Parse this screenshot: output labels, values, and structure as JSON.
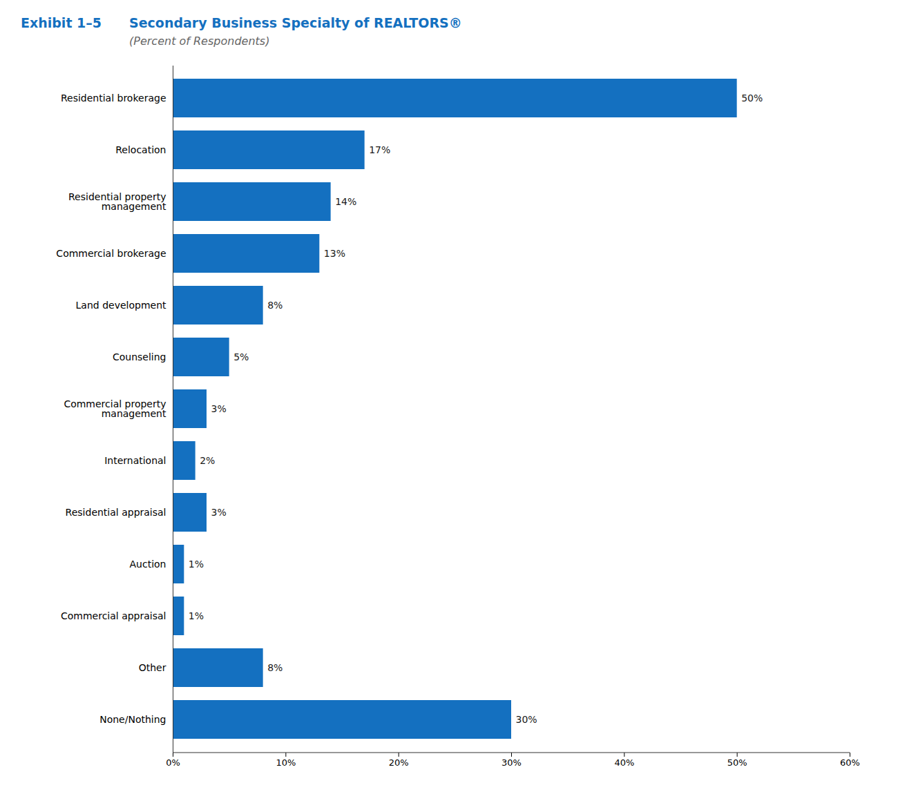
{
  "chart_data": {
    "type": "bar",
    "orientation": "horizontal",
    "title": "Secondary Business Specialty of REALTORS®",
    "subtitle": "(Percent of Respondents)",
    "annotations": [
      "Exhibit 1–5"
    ],
    "categories": [
      "Residential brokerage",
      "Relocation",
      "Residential property\nmanagement",
      "Commercial brokerage",
      "Land development",
      "Counseling",
      "Commercial property\nmanagement",
      "International",
      "Residential appraisal",
      "Auction",
      "Commercial appraisal",
      "Other",
      "None/Nothing"
    ],
    "values": [
      50,
      17,
      14,
      13,
      8,
      5,
      3,
      2,
      3,
      1,
      1,
      8,
      30
    ],
    "value_labels": [
      "50%",
      "17%",
      "14%",
      "13%",
      "8%",
      "5%",
      "3%",
      "2%",
      "3%",
      "1%",
      "1%",
      "8%",
      "30%"
    ],
    "data_labels": true,
    "color": "#1470C0",
    "xlim": [
      0,
      60
    ],
    "xticks": [
      {
        "value": 0,
        "label": "0%"
      },
      {
        "value": 10,
        "label": "10%"
      },
      {
        "value": 20,
        "label": "20%"
      },
      {
        "value": 30,
        "label": "30%"
      },
      {
        "value": 40,
        "label": "40%"
      },
      {
        "value": 50,
        "label": "50%"
      },
      {
        "value": 60,
        "label": "60%"
      }
    ],
    "grid": false
  }
}
